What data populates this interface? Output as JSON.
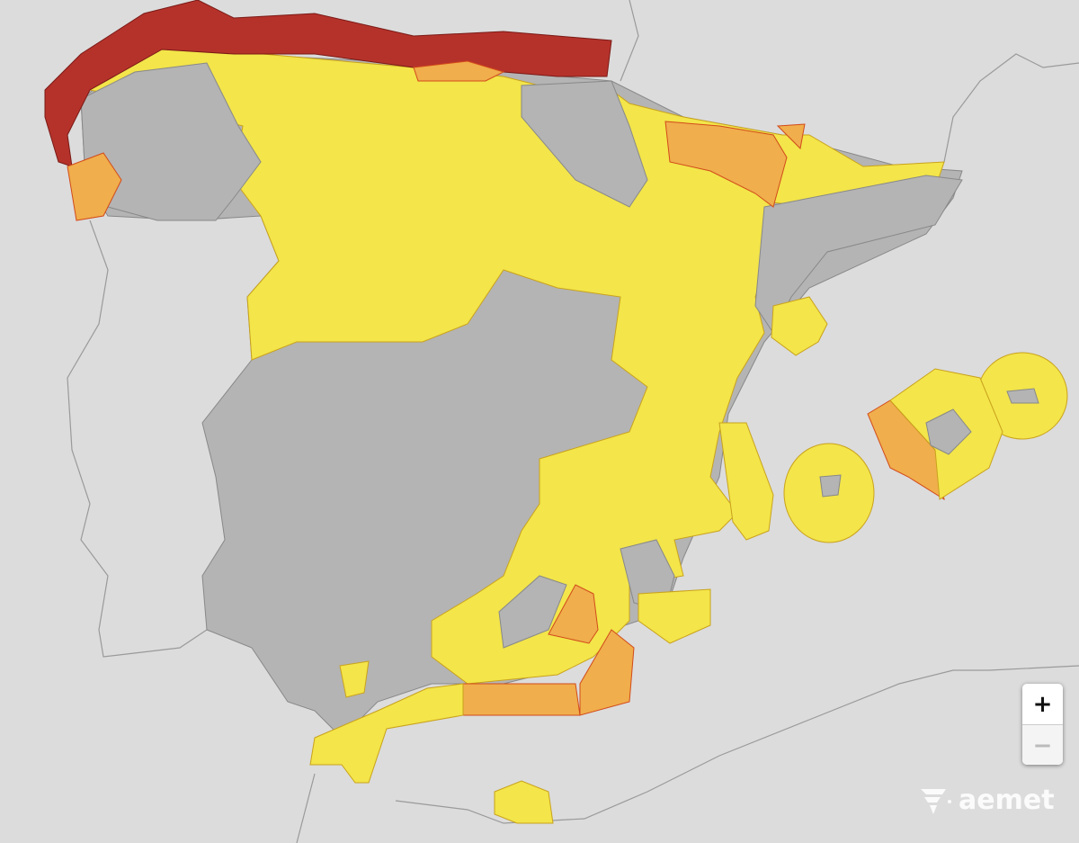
{
  "map": {
    "colors": {
      "sea": "#dcdcdc",
      "no_warning": "#b4b4b4",
      "yellow": "#f3e54a",
      "orange": "#f0ae4c",
      "red": "#b5322b",
      "border": "#999999"
    },
    "warning_levels": [
      "yellow",
      "orange",
      "red"
    ]
  },
  "controls": {
    "zoom_in": "+",
    "zoom_out": "−"
  },
  "logo": {
    "text": "aemet"
  }
}
